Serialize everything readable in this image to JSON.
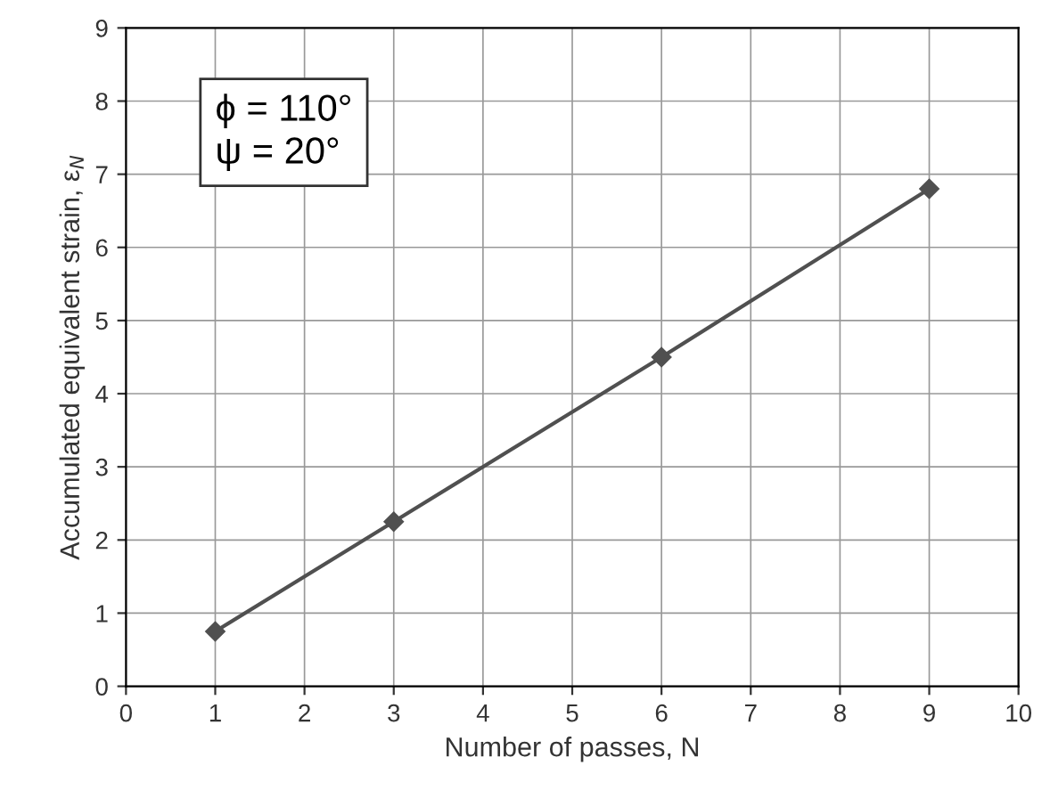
{
  "chart_data": {
    "type": "line",
    "x": [
      1,
      3,
      6,
      9
    ],
    "series": [
      {
        "color": "#505050",
        "values": [
          0.75,
          2.25,
          4.5,
          6.8
        ]
      }
    ],
    "xlabel": "Number of passes, N",
    "ylabel": "Accumulated equivalent strain, ε$_{N}$",
    "annotations": [
      "ϕ = 110°",
      "ψ = 20°"
    ],
    "xlim": [
      0,
      10
    ],
    "xticks": [
      0,
      1,
      2,
      3,
      4,
      5,
      6,
      7,
      8,
      9,
      10
    ],
    "ylim": [
      0,
      9
    ],
    "yticks": [
      0,
      1,
      2,
      3,
      4,
      5,
      6,
      7,
      8,
      9
    ],
    "grid": true,
    "marker": "diamond",
    "line_style": "solid",
    "legend": false
  }
}
